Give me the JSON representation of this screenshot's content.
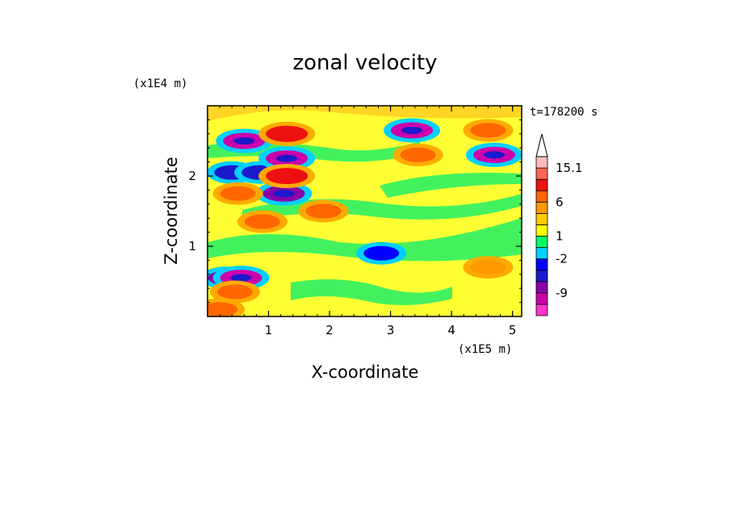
{
  "chart_data": {
    "type": "heatmap",
    "title": "zonal velocity",
    "xlabel": "X-coordinate",
    "ylabel": "Z-coordinate",
    "x_scale_label": "(x1E5 m)",
    "y_scale_label": "(x1E4 m)",
    "time_label": "t=178200 s",
    "xlim": [
      0,
      5.15
    ],
    "ylim": [
      0,
      3.0
    ],
    "x_ticks": [
      "1",
      "2",
      "3",
      "4",
      "5"
    ],
    "x_tick_values": [
      1,
      2,
      3,
      4,
      5
    ],
    "y_ticks": [
      "1",
      "2"
    ],
    "y_tick_values": [
      1,
      2
    ],
    "colorbar": {
      "extend_max": true,
      "colors": [
        "#ff33cc",
        "#cc00aa",
        "#8800aa",
        "#1a1acc",
        "#0000ff",
        "#00d0ff",
        "#00ff66",
        "#ffff00",
        "#ffcc00",
        "#ff9900",
        "#ff6600",
        "#ee1111",
        "#ff6655",
        "#ffbbbb"
      ],
      "labels": [
        "-9",
        "-2",
        "1",
        "6",
        "15.1"
      ],
      "label_levels": [
        2,
        5,
        7,
        10,
        13
      ]
    },
    "features": [
      {
        "x": 0.6,
        "z": 2.5,
        "value": -10
      },
      {
        "x": 0.4,
        "z": 2.05,
        "value": -6
      },
      {
        "x": 0.85,
        "z": 2.05,
        "value": -5
      },
      {
        "x": 1.3,
        "z": 2.25,
        "value": -9
      },
      {
        "x": 1.25,
        "z": 1.75,
        "value": -8
      },
      {
        "x": 1.3,
        "z": 2.6,
        "value": 8
      },
      {
        "x": 1.3,
        "z": 2.0,
        "value": 9
      },
      {
        "x": 0.5,
        "z": 1.75,
        "value": 7
      },
      {
        "x": 0.9,
        "z": 1.35,
        "value": 6
      },
      {
        "x": 1.9,
        "z": 1.5,
        "value": 5
      },
      {
        "x": 3.35,
        "z": 2.65,
        "value": -9
      },
      {
        "x": 3.45,
        "z": 2.3,
        "value": 6
      },
      {
        "x": 4.6,
        "z": 2.65,
        "value": 6
      },
      {
        "x": 4.7,
        "z": 2.3,
        "value": -9
      },
      {
        "x": 0.3,
        "z": 0.55,
        "value": -7
      },
      {
        "x": 0.55,
        "z": 0.55,
        "value": -10
      },
      {
        "x": 0.45,
        "z": 0.35,
        "value": 5
      },
      {
        "x": 0.2,
        "z": 0.1,
        "value": 6
      },
      {
        "x": 2.85,
        "z": 0.9,
        "value": -2
      },
      {
        "x": 4.6,
        "z": 0.7,
        "value": 3
      }
    ]
  }
}
